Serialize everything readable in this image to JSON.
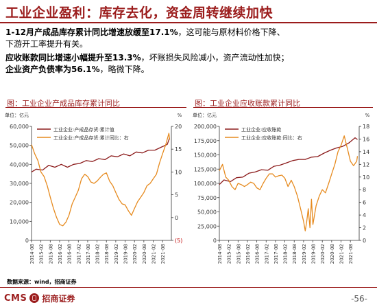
{
  "slide": {
    "title": "工业企业盈利：库存去化，资金周转继续加快",
    "bullet1_a": "1-12月产成品库存累计同比增速放缓至",
    "bullet1_b": "17.1%",
    "bullet1_c": "，这可能与原材料价格下降、",
    "bullet2": "下游开工率提升有关。",
    "bullet3_a": "应收账款同比增速小幅提升至",
    "bullet3_b": "13.3%",
    "bullet3_c": "，坏账损失风险减小，资产流动性加快；",
    "bullet4_a": "企业资产负债率为",
    "bullet4_b": "56.1%",
    "bullet4_c": "，略微下降。",
    "source": "数据来源：wind，招商证券",
    "logo_cms": "CMS",
    "logo_name": "招商证券",
    "page_number": "-56-"
  },
  "chart_data": [
    {
      "type": "line",
      "title": "图：工业企业产成品库存累计同比",
      "left_unit": "单位：亿元",
      "right_unit": "%",
      "x_ticks": [
        "2014-08",
        "2015-02",
        "2015-08",
        "2016-02",
        "2016-08",
        "2017-02",
        "2017-08",
        "2018-02",
        "2018-08",
        "2019-02",
        "2019-08",
        "2020-02",
        "2020-08",
        "2021-02",
        "2021-08"
      ],
      "ylim_left": [
        0,
        60000
      ],
      "yticks_left": [
        "0",
        "10,000",
        "20,000",
        "30,000",
        "40,000",
        "50,000",
        "60,000"
      ],
      "ylim_right": [
        -5,
        20
      ],
      "yticks_right": [
        "(5)",
        "0",
        "5",
        "10",
        "15",
        "20"
      ],
      "series": [
        {
          "name": "工业企业:产成品存货:累计值",
          "axis": "left",
          "color": "#8b1a1a",
          "x": [
            2014.58,
            2014.83,
            2015.17,
            2015.5,
            2015.83,
            2016.17,
            2016.5,
            2016.83,
            2017.17,
            2017.5,
            2017.83,
            2018.17,
            2018.5,
            2018.83,
            2019.17,
            2019.5,
            2019.83,
            2020.17,
            2020.5,
            2020.83,
            2021.17,
            2021.5,
            2021.83,
            2021.96
          ],
          "values": [
            36000,
            37500,
            37000,
            39500,
            38500,
            40000,
            38500,
            40000,
            40500,
            42000,
            41500,
            43000,
            42500,
            44500,
            44000,
            45500,
            44500,
            46500,
            46000,
            47500,
            47500,
            49000,
            50500,
            54000
          ]
        },
        {
          "name": "工业企业:产成品存货:累计同比：右",
          "axis": "right",
          "color": "#e68a1e",
          "x": [
            2014.58,
            2014.75,
            2014.92,
            2015.08,
            2015.25,
            2015.42,
            2015.58,
            2015.75,
            2015.92,
            2016.08,
            2016.25,
            2016.42,
            2016.58,
            2016.75,
            2016.92,
            2017.08,
            2017.25,
            2017.42,
            2017.58,
            2017.75,
            2017.92,
            2018.08,
            2018.25,
            2018.42,
            2018.58,
            2018.75,
            2018.92,
            2019.08,
            2019.25,
            2019.42,
            2019.58,
            2019.75,
            2019.92,
            2020.08,
            2020.25,
            2020.42,
            2020.58,
            2020.75,
            2020.92,
            2021.08,
            2021.25,
            2021.42,
            2021.58,
            2021.75,
            2021.92,
            2021.96
          ],
          "values": [
            16,
            14,
            12.5,
            10,
            9,
            7,
            4.5,
            2,
            0,
            -1.5,
            -1.8,
            -1,
            0.5,
            3,
            4.5,
            6,
            8.5,
            9.5,
            9,
            7.8,
            7.5,
            8,
            8.8,
            9.5,
            9.8,
            8,
            7,
            5.5,
            4,
            3,
            2.8,
            1.5,
            0.5,
            2,
            3.5,
            4.5,
            5.5,
            7,
            7.5,
            8.5,
            9.5,
            12,
            14,
            16,
            18.5,
            17.1
          ]
        }
      ]
    },
    {
      "type": "line",
      "title": "图：工业企业应收账款累计同比",
      "left_unit": "单位：亿元",
      "right_unit": "%",
      "x_ticks": [
        "2014-08",
        "2015-02",
        "2015-08",
        "2016-02",
        "2016-08",
        "2017-02",
        "2017-08",
        "2018-02",
        "2018-08",
        "2019-02",
        "2019-08",
        "2020-02",
        "2020-08",
        "2021-02",
        "2021-08"
      ],
      "ylim_left": [
        0,
        200000
      ],
      "yticks_left": [
        "0",
        "25,000",
        "50,000",
        "75,000",
        "100,000",
        "125,000",
        "150,000",
        "175,000",
        "200,000"
      ],
      "ylim_right": [
        0,
        18
      ],
      "yticks_right": [
        "0",
        "2",
        "4",
        "6",
        "8",
        "10",
        "12",
        "14",
        "16",
        "18"
      ],
      "series": [
        {
          "name": "工业企业:应收账款",
          "axis": "left",
          "color": "#8b1a1a",
          "x": [
            2014.58,
            2014.83,
            2015.17,
            2015.5,
            2015.83,
            2016.17,
            2016.5,
            2016.83,
            2017.17,
            2017.5,
            2017.83,
            2018.17,
            2018.5,
            2018.83,
            2019.17,
            2019.5,
            2019.83,
            2020.17,
            2020.5,
            2020.83,
            2021.17,
            2021.5,
            2021.83,
            2021.96
          ],
          "values": [
            98000,
            106000,
            103000,
            110000,
            111000,
            118000,
            120000,
            124000,
            123000,
            130000,
            132000,
            136000,
            140000,
            142000,
            142000,
            146000,
            147000,
            153000,
            158000,
            162000,
            165000,
            171000,
            180000,
            177000
          ]
        },
        {
          "name": "工业企业:应收账款:同比：右",
          "axis": "right",
          "color": "#e68a1e",
          "x": [
            2014.58,
            2014.75,
            2014.92,
            2015.08,
            2015.25,
            2015.42,
            2015.58,
            2015.75,
            2015.92,
            2016.08,
            2016.25,
            2016.42,
            2016.58,
            2016.75,
            2016.92,
            2017.08,
            2017.25,
            2017.42,
            2017.58,
            2017.75,
            2017.92,
            2018.08,
            2018.25,
            2018.42,
            2018.58,
            2018.75,
            2018.92,
            2019.08,
            2019.17,
            2019.25,
            2019.33,
            2019.42,
            2019.5,
            2019.58,
            2019.75,
            2019.92,
            2020.08,
            2020.25,
            2020.42,
            2020.58,
            2020.75,
            2020.92,
            2021.08,
            2021.25,
            2021.42,
            2021.58,
            2021.75,
            2021.92,
            2021.96
          ],
          "values": [
            11,
            12,
            10,
            9.5,
            8.5,
            8,
            9,
            8.8,
            8.5,
            8.8,
            9.2,
            9,
            8.3,
            8,
            9,
            9.8,
            10.5,
            10.5,
            10,
            10.2,
            10.3,
            9.8,
            8.5,
            9.5,
            8.5,
            7,
            5,
            3,
            1.5,
            3,
            5,
            2,
            6.5,
            2.5,
            5.5,
            7,
            8,
            7.5,
            9,
            10.5,
            12,
            14,
            15,
            16.5,
            14.5,
            12.5,
            11.8,
            12.5,
            13.3
          ]
        }
      ]
    }
  ]
}
